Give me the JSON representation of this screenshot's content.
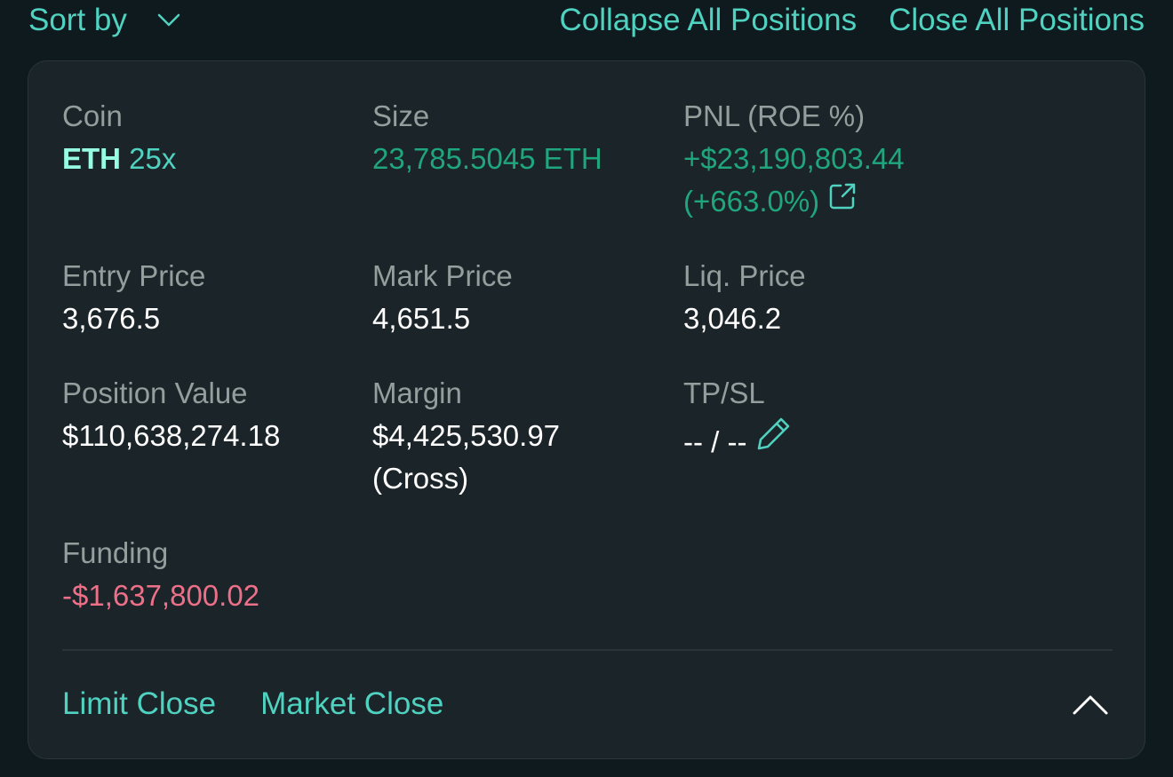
{
  "toolbar": {
    "sort_label": "Sort by",
    "collapse_all_label": "Collapse All Positions",
    "close_all_label": "Close All Positions"
  },
  "position": {
    "coin": {
      "label": "Coin",
      "symbol": "ETH",
      "leverage": "25x"
    },
    "size": {
      "label": "Size",
      "value": "23,785.5045 ETH"
    },
    "pnl": {
      "label": "PNL (ROE %)",
      "value": "+$23,190,803.44",
      "roe": "(+663.0%)"
    },
    "entry_price": {
      "label": "Entry Price",
      "value": "3,676.5"
    },
    "mark_price": {
      "label": "Mark Price",
      "value": "4,651.5"
    },
    "liq_price": {
      "label": "Liq. Price",
      "value": "3,046.2"
    },
    "position_value": {
      "label": "Position Value",
      "value": "$110,638,274.18"
    },
    "margin": {
      "label": "Margin",
      "value": "$4,425,530.97",
      "mode": "(Cross)"
    },
    "tpsl": {
      "label": "TP/SL",
      "value": "-- / --"
    },
    "funding": {
      "label": "Funding",
      "value": "-$1,637,800.02"
    }
  },
  "actions": {
    "limit_close_label": "Limit Close",
    "market_close_label": "Market Close"
  },
  "icons": {
    "sort": "chevron-down-icon",
    "pnl_share": "external-link-icon",
    "tpsl_edit": "pencil-icon",
    "collapse": "chevron-up-icon"
  },
  "colors": {
    "background": "#0f1a1f",
    "card": "#1b2429",
    "accent": "#50d2c1",
    "positive": "#1fa67d",
    "negative": "#ed7088",
    "label": "#949e9c"
  }
}
